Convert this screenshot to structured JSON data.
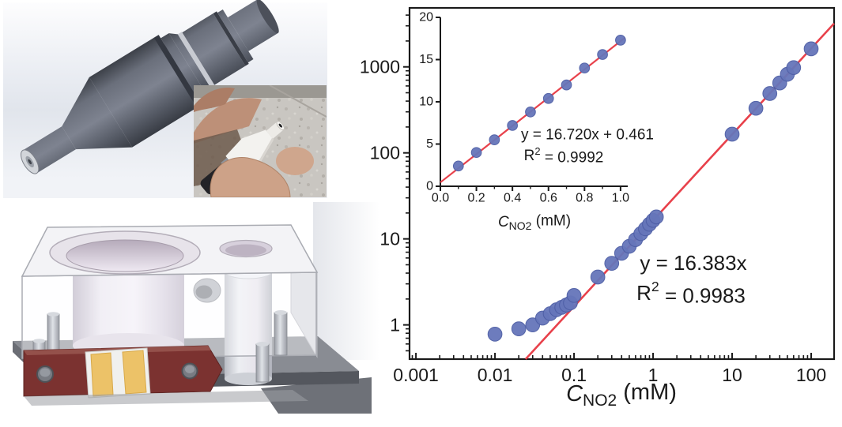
{
  "figure": {
    "colors": {
      "marker": "#6676BA",
      "marker_edge": "#4F5FA6",
      "fit_line": "#E8414B",
      "axis": "#1A1A1A",
      "background": "#FFFFFF"
    },
    "panels": {
      "top_left": "sensor-cad-render",
      "photo_inset": "sensor-photo",
      "bottom_left": "flow-cell-cad-render"
    }
  },
  "chart_data": [
    {
      "id": "main",
      "type": "scatter",
      "x_scale": "log",
      "y_scale": "log",
      "xlim": [
        0.00083,
        195
      ],
      "ylim": [
        0.4,
        4850
      ],
      "grid": false,
      "legend": "none",
      "x_ticks": {
        "values": [
          0.001,
          0.01,
          0.1,
          1,
          10,
          100
        ],
        "labels": [
          "0.001",
          "0.01",
          "0.1",
          "1",
          "10",
          "100"
        ]
      },
      "y_ticks": {
        "values": [
          1,
          10,
          100,
          1000
        ],
        "labels": [
          "1",
          "10",
          "100",
          "1000"
        ]
      },
      "xlabel": {
        "lead": "C",
        "sub": "NO2",
        "rest": " (mM)"
      },
      "series": [
        {
          "name": "sensor-response",
          "type": "scatter",
          "x": [
            0.01,
            0.02,
            0.03,
            0.04,
            0.05,
            0.06,
            0.07,
            0.08,
            0.09,
            0.1,
            0.2,
            0.3,
            0.4,
            0.5,
            0.6,
            0.7,
            0.8,
            0.9,
            1.0,
            1.1,
            10,
            20,
            30,
            40,
            50,
            60,
            100
          ],
          "y": [
            0.78,
            0.9,
            1.0,
            1.2,
            1.35,
            1.5,
            1.6,
            1.7,
            1.8,
            2.2,
            3.6,
            5.2,
            6.8,
            8.2,
            9.8,
            11.5,
            13.1,
            14.8,
            16.4,
            18.0,
            165,
            330,
            490,
            650,
            820,
            980,
            1620
          ]
        },
        {
          "name": "linear-fit",
          "type": "line",
          "slope": 16.383,
          "intercept": 0,
          "equation": "y = 16.383x",
          "r_squared": "R² = 0.9983"
        }
      ]
    },
    {
      "id": "inset",
      "type": "scatter",
      "x_scale": "linear",
      "y_scale": "linear",
      "xlim": [
        0,
        1.04
      ],
      "ylim": [
        0,
        20
      ],
      "grid": false,
      "legend": "none",
      "x_minor_step": 0.1,
      "x_ticks": {
        "values": [
          0,
          0.2,
          0.4,
          0.6,
          0.8,
          1.0
        ],
        "labels": [
          "0.0",
          "0.2",
          "0.4",
          "0.6",
          "0.8",
          "1.0"
        ]
      },
      "y_ticks": {
        "values": [
          0,
          5,
          10,
          15,
          20
        ],
        "labels": [
          "0",
          "5",
          "10",
          "15",
          "20"
        ]
      },
      "xlabel": {
        "lead": "C",
        "sub": "NO2",
        "rest": " (mM)"
      },
      "series": [
        {
          "name": "sensor-response-linear",
          "type": "scatter",
          "x": [
            0.1,
            0.2,
            0.3,
            0.4,
            0.5,
            0.6,
            0.7,
            0.8,
            0.9,
            1.0
          ],
          "y": [
            2.4,
            4.0,
            5.5,
            7.2,
            8.8,
            10.4,
            12.0,
            14.0,
            15.6,
            17.3
          ]
        },
        {
          "name": "linear-fit",
          "type": "line",
          "slope": 16.72,
          "intercept": 0.461,
          "equation": "y = 16.720x + 0.461",
          "r_squared": "R² = 0.9992"
        }
      ]
    }
  ]
}
